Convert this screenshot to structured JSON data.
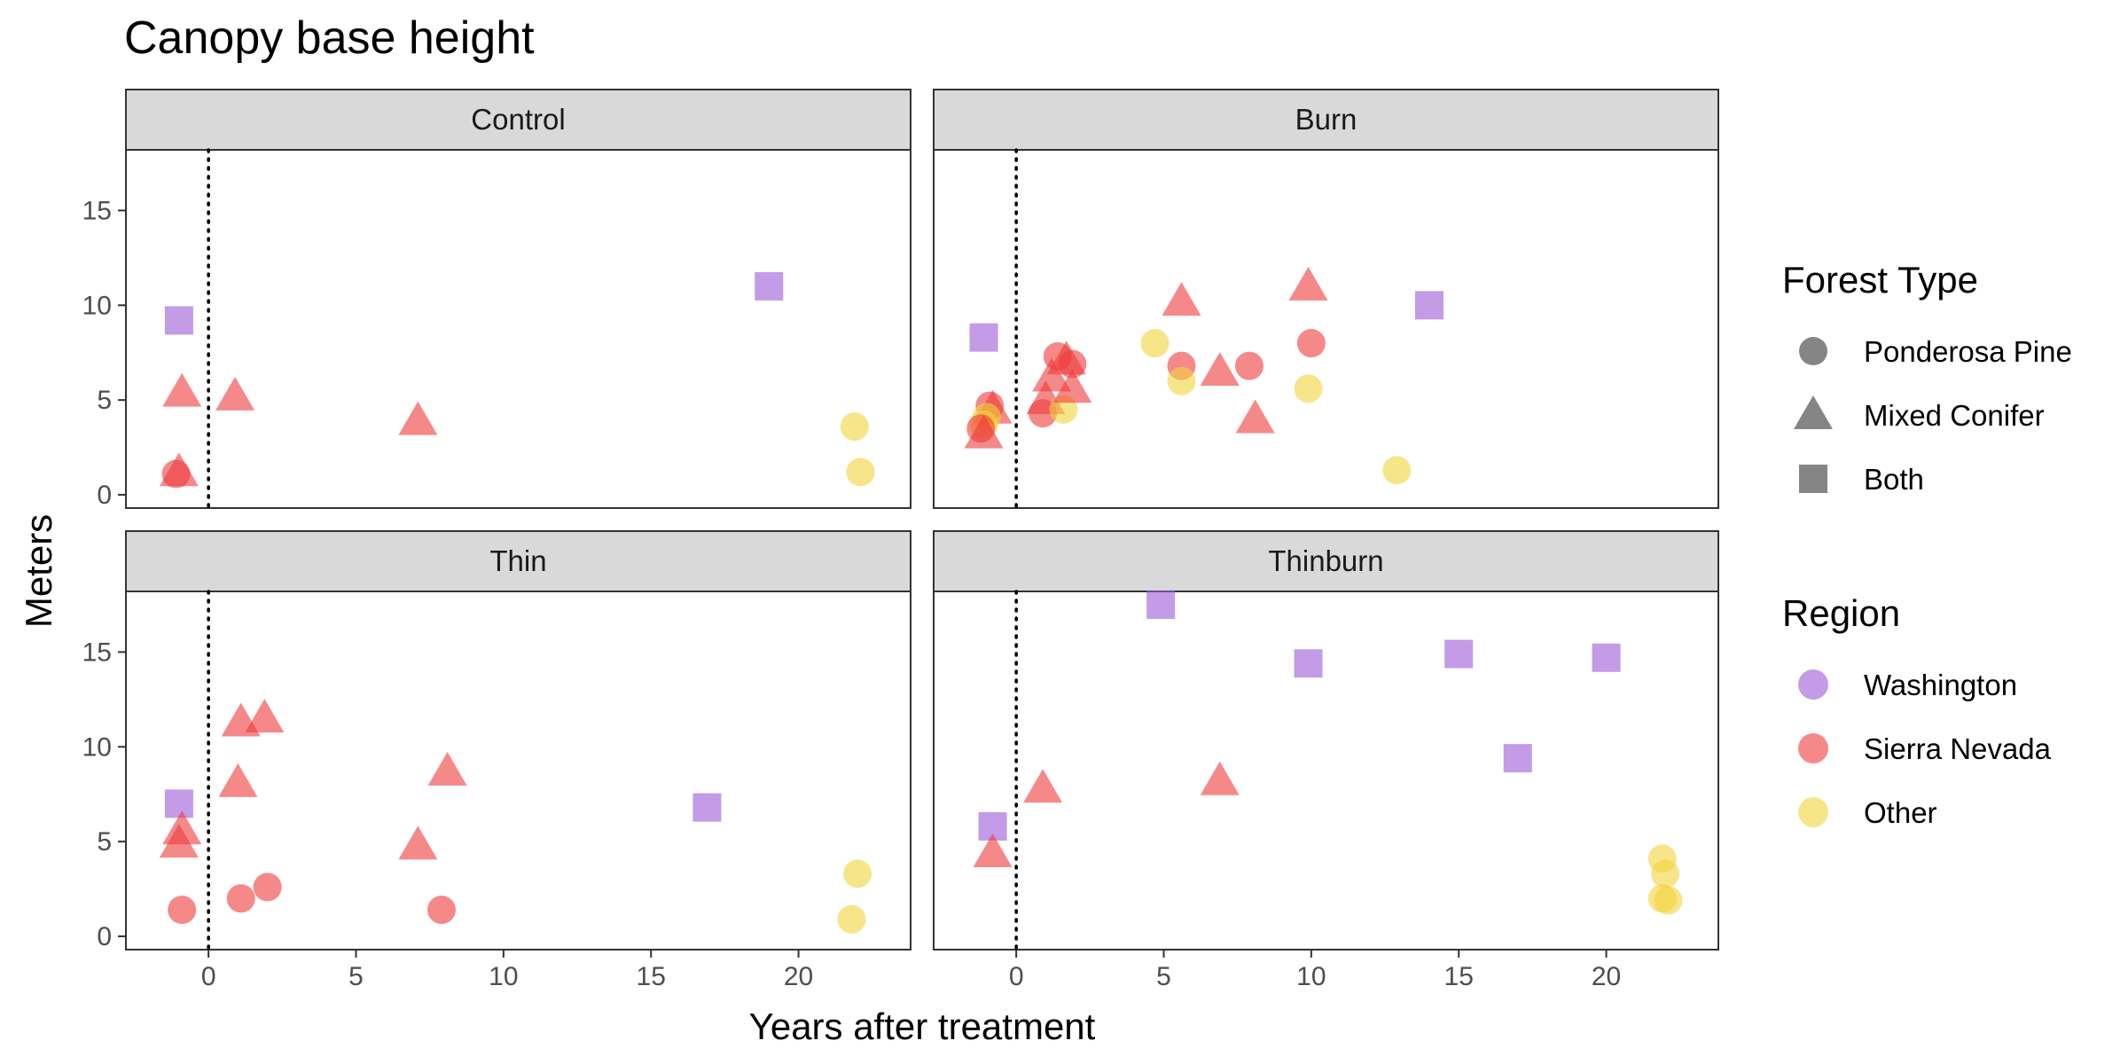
{
  "chart_data": {
    "type": "scatter",
    "title": "Canopy base height",
    "xlabel": "Years after treatment",
    "ylabel": "Meters",
    "xlim": [
      -2.8,
      23.8
    ],
    "ylim": [
      -0.7,
      18.2
    ],
    "x_ticks": [
      0,
      5,
      10,
      15,
      20
    ],
    "y_ticks": [
      0,
      5,
      10,
      15
    ],
    "vline_x": 0,
    "grid": false,
    "legend_position": "right",
    "legends": {
      "forest_type": {
        "title": "Forest Type",
        "entries": [
          {
            "label": "Ponderosa Pine",
            "shape": "circle"
          },
          {
            "label": "Mixed Conifer",
            "shape": "triangle"
          },
          {
            "label": "Both",
            "shape": "square"
          }
        ]
      },
      "region": {
        "title": "Region",
        "entries": [
          {
            "label": "Washington",
            "color": "#9B59D6"
          },
          {
            "label": "Sierra Nevada",
            "color": "#EE3B3B"
          },
          {
            "label": "Other",
            "color": "#F2D43C"
          }
        ]
      }
    },
    "panels": [
      {
        "name": "Control",
        "points": [
          {
            "x": -1.0,
            "y": 9.2,
            "shape": "square",
            "region": "Washington"
          },
          {
            "x": -0.9,
            "y": 5.4,
            "shape": "triangle",
            "region": "Sierra Nevada"
          },
          {
            "x": -1.1,
            "y": 1.1,
            "shape": "circle",
            "region": "Sierra Nevada"
          },
          {
            "x": -1.0,
            "y": 1.2,
            "shape": "triangle",
            "region": "Sierra Nevada"
          },
          {
            "x": 0.9,
            "y": 5.2,
            "shape": "triangle",
            "region": "Sierra Nevada"
          },
          {
            "x": 7.1,
            "y": 3.9,
            "shape": "triangle",
            "region": "Sierra Nevada"
          },
          {
            "x": 19.0,
            "y": 11.0,
            "shape": "square",
            "region": "Washington"
          },
          {
            "x": 21.9,
            "y": 3.6,
            "shape": "circle",
            "region": "Other"
          },
          {
            "x": 22.1,
            "y": 1.2,
            "shape": "circle",
            "region": "Other"
          }
        ]
      },
      {
        "name": "Burn",
        "points": [
          {
            "x": -1.1,
            "y": 8.3,
            "shape": "square",
            "region": "Washington"
          },
          {
            "x": -0.9,
            "y": 4.7,
            "shape": "circle",
            "region": "Sierra Nevada"
          },
          {
            "x": -0.8,
            "y": 4.5,
            "shape": "triangle",
            "region": "Sierra Nevada"
          },
          {
            "x": -1.0,
            "y": 4.1,
            "shape": "circle",
            "region": "Other"
          },
          {
            "x": -1.1,
            "y": 3.7,
            "shape": "circle",
            "region": "Other"
          },
          {
            "x": -1.2,
            "y": 3.5,
            "shape": "circle",
            "region": "Sierra Nevada"
          },
          {
            "x": -1.1,
            "y": 3.2,
            "shape": "triangle",
            "region": "Sierra Nevada"
          },
          {
            "x": 0.9,
            "y": 4.3,
            "shape": "circle",
            "region": "Sierra Nevada"
          },
          {
            "x": 1.0,
            "y": 5.0,
            "shape": "triangle",
            "region": "Sierra Nevada"
          },
          {
            "x": 1.2,
            "y": 6.2,
            "shape": "triangle",
            "region": "Sierra Nevada"
          },
          {
            "x": 1.4,
            "y": 7.3,
            "shape": "circle",
            "region": "Sierra Nevada"
          },
          {
            "x": 1.6,
            "y": 4.5,
            "shape": "circle",
            "region": "Other"
          },
          {
            "x": 1.7,
            "y": 7.1,
            "shape": "triangle",
            "region": "Sierra Nevada"
          },
          {
            "x": 1.9,
            "y": 6.9,
            "shape": "circle",
            "region": "Sierra Nevada"
          },
          {
            "x": 1.9,
            "y": 5.6,
            "shape": "triangle",
            "region": "Sierra Nevada"
          },
          {
            "x": 4.7,
            "y": 8.0,
            "shape": "circle",
            "region": "Other"
          },
          {
            "x": 5.6,
            "y": 10.2,
            "shape": "triangle",
            "region": "Sierra Nevada"
          },
          {
            "x": 5.6,
            "y": 6.8,
            "shape": "circle",
            "region": "Sierra Nevada"
          },
          {
            "x": 5.6,
            "y": 6.0,
            "shape": "circle",
            "region": "Other"
          },
          {
            "x": 6.9,
            "y": 6.5,
            "shape": "triangle",
            "region": "Sierra Nevada"
          },
          {
            "x": 7.9,
            "y": 6.8,
            "shape": "circle",
            "region": "Sierra Nevada"
          },
          {
            "x": 8.1,
            "y": 4.0,
            "shape": "triangle",
            "region": "Sierra Nevada"
          },
          {
            "x": 9.9,
            "y": 11.0,
            "shape": "triangle",
            "region": "Sierra Nevada"
          },
          {
            "x": 10.0,
            "y": 8.0,
            "shape": "circle",
            "region": "Sierra Nevada"
          },
          {
            "x": 9.9,
            "y": 5.6,
            "shape": "circle",
            "region": "Other"
          },
          {
            "x": 12.9,
            "y": 1.3,
            "shape": "circle",
            "region": "Other"
          },
          {
            "x": 14.0,
            "y": 10.0,
            "shape": "square",
            "region": "Washington"
          }
        ]
      },
      {
        "name": "Thin",
        "points": [
          {
            "x": -1.0,
            "y": 7.0,
            "shape": "square",
            "region": "Washington"
          },
          {
            "x": -0.9,
            "y": 5.6,
            "shape": "triangle",
            "region": "Sierra Nevada"
          },
          {
            "x": -1.0,
            "y": 4.9,
            "shape": "triangle",
            "region": "Sierra Nevada"
          },
          {
            "x": -0.9,
            "y": 1.4,
            "shape": "circle",
            "region": "Sierra Nevada"
          },
          {
            "x": 1.0,
            "y": 8.1,
            "shape": "triangle",
            "region": "Sierra Nevada"
          },
          {
            "x": 1.1,
            "y": 11.3,
            "shape": "triangle",
            "region": "Sierra Nevada"
          },
          {
            "x": 1.9,
            "y": 11.5,
            "shape": "triangle",
            "region": "Sierra Nevada"
          },
          {
            "x": 1.1,
            "y": 2.0,
            "shape": "circle",
            "region": "Sierra Nevada"
          },
          {
            "x": 2.0,
            "y": 2.6,
            "shape": "circle",
            "region": "Sierra Nevada"
          },
          {
            "x": 7.1,
            "y": 4.8,
            "shape": "triangle",
            "region": "Sierra Nevada"
          },
          {
            "x": 8.1,
            "y": 8.7,
            "shape": "triangle",
            "region": "Sierra Nevada"
          },
          {
            "x": 7.9,
            "y": 1.4,
            "shape": "circle",
            "region": "Sierra Nevada"
          },
          {
            "x": 16.9,
            "y": 6.8,
            "shape": "square",
            "region": "Washington"
          },
          {
            "x": 22.0,
            "y": 3.3,
            "shape": "circle",
            "region": "Other"
          },
          {
            "x": 21.8,
            "y": 0.9,
            "shape": "circle",
            "region": "Other"
          }
        ]
      },
      {
        "name": "Thinburn",
        "points": [
          {
            "x": -0.8,
            "y": 5.8,
            "shape": "square",
            "region": "Washington"
          },
          {
            "x": -0.8,
            "y": 4.4,
            "shape": "triangle",
            "region": "Sierra Nevada"
          },
          {
            "x": 0.9,
            "y": 7.8,
            "shape": "triangle",
            "region": "Sierra Nevada"
          },
          {
            "x": 4.9,
            "y": 17.5,
            "shape": "square",
            "region": "Washington"
          },
          {
            "x": 6.9,
            "y": 8.2,
            "shape": "triangle",
            "region": "Sierra Nevada"
          },
          {
            "x": 9.9,
            "y": 14.4,
            "shape": "square",
            "region": "Washington"
          },
          {
            "x": 15.0,
            "y": 14.9,
            "shape": "square",
            "region": "Washington"
          },
          {
            "x": 17.0,
            "y": 9.4,
            "shape": "square",
            "region": "Washington"
          },
          {
            "x": 20.0,
            "y": 14.7,
            "shape": "square",
            "region": "Washington"
          },
          {
            "x": 21.9,
            "y": 4.1,
            "shape": "circle",
            "region": "Other"
          },
          {
            "x": 22.0,
            "y": 3.3,
            "shape": "circle",
            "region": "Other"
          },
          {
            "x": 21.9,
            "y": 2.0,
            "shape": "circle",
            "region": "Other"
          },
          {
            "x": 22.1,
            "y": 1.9,
            "shape": "circle",
            "region": "Other"
          }
        ]
      }
    ]
  }
}
